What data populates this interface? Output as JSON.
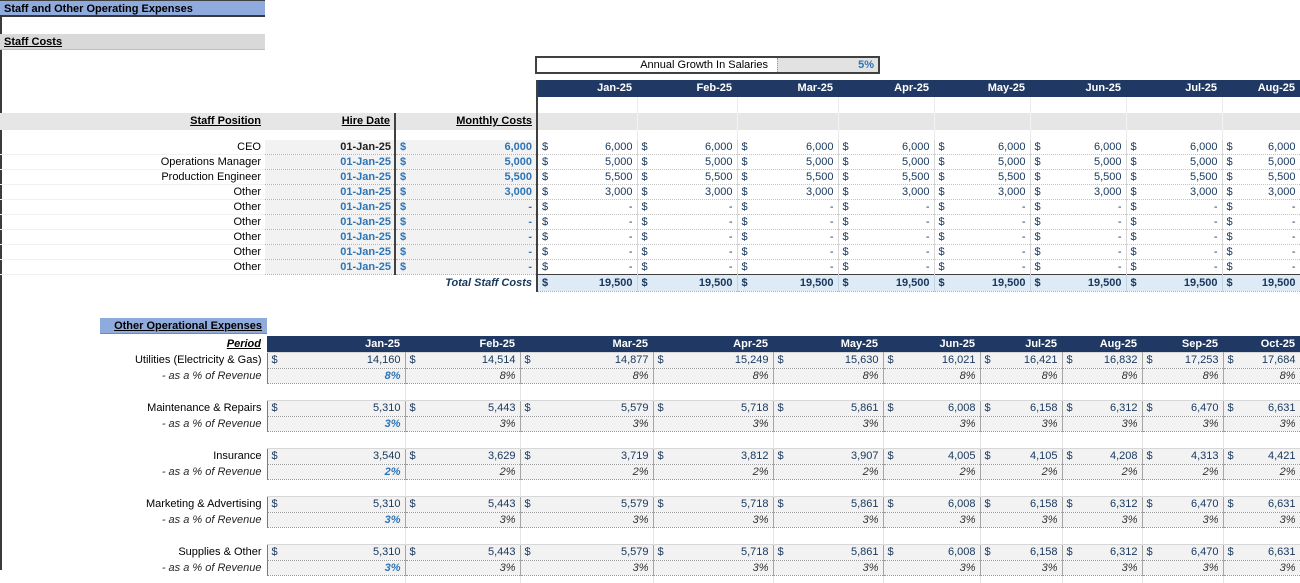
{
  "title": "Staff and Other Operating Expenses",
  "colors": {
    "header_blue": "#8FAADC",
    "navy": "#1F3864",
    "input_blue": "#2E75B6",
    "value_navy": "#17375D",
    "input_cell_gray": "#F2F2F2",
    "band_gray": "#D9D9D9",
    "total_row_blue": "#DEEAF6"
  },
  "staff_section": {
    "heading": "Staff Costs",
    "growth": {
      "label": "Annual Growth In Salaries",
      "value": "5%"
    },
    "currency": "$",
    "columns": {
      "position": "Staff Position",
      "hire_date": "Hire Date",
      "monthly_costs": "Monthly Costs"
    },
    "months": [
      "Jan-25",
      "Feb-25",
      "Mar-25",
      "Apr-25",
      "May-25",
      "Jun-25",
      "Jul-25",
      "Aug-25"
    ],
    "rows": [
      {
        "position": "CEO",
        "hire_date": "01-Jan-25",
        "hire_is_blue": false,
        "monthly_cost": "6,000"
      },
      {
        "position": "Operations Manager",
        "hire_date": "01-Jan-25",
        "hire_is_blue": true,
        "monthly_cost": "5,000"
      },
      {
        "position": "Production Engineer",
        "hire_date": "01-Jan-25",
        "hire_is_blue": true,
        "monthly_cost": "5,500"
      },
      {
        "position": "Other",
        "hire_date": "01-Jan-25",
        "hire_is_blue": true,
        "monthly_cost": "3,000"
      },
      {
        "position": "Other",
        "hire_date": "01-Jan-25",
        "hire_is_blue": true,
        "monthly_cost": "-"
      },
      {
        "position": "Other",
        "hire_date": "01-Jan-25",
        "hire_is_blue": true,
        "monthly_cost": "-"
      },
      {
        "position": "Other",
        "hire_date": "01-Jan-25",
        "hire_is_blue": true,
        "monthly_cost": "-"
      },
      {
        "position": "Other",
        "hire_date": "01-Jan-25",
        "hire_is_blue": true,
        "monthly_cost": "-"
      },
      {
        "position": "Other",
        "hire_date": "01-Jan-25",
        "hire_is_blue": true,
        "monthly_cost": "-"
      }
    ],
    "total": {
      "label": "Total Staff Costs",
      "value": "19,500"
    }
  },
  "opex_section": {
    "heading": "Other Operational Expenses",
    "period_label": "Period",
    "pct_row_label": "- as a % of Revenue",
    "currency": "$",
    "months": [
      "Jan-25",
      "Feb-25",
      "Mar-25",
      "Apr-25",
      "May-25",
      "Jun-25",
      "Jul-25",
      "Aug-25",
      "Sep-25",
      "Oct-25"
    ],
    "items": [
      {
        "name": "Utilities (Electricity & Gas)",
        "values": [
          "14,160",
          "14,514",
          "14,877",
          "15,249",
          "15,630",
          "16,021",
          "16,421",
          "16,832",
          "17,253",
          "17,684"
        ],
        "pct": "8%"
      },
      {
        "name": "Maintenance & Repairs",
        "values": [
          "5,310",
          "5,443",
          "5,579",
          "5,718",
          "5,861",
          "6,008",
          "6,158",
          "6,312",
          "6,470",
          "6,631"
        ],
        "pct": "3%"
      },
      {
        "name": "Insurance",
        "values": [
          "3,540",
          "3,629",
          "3,719",
          "3,812",
          "3,907",
          "4,005",
          "4,105",
          "4,208",
          "4,313",
          "4,421"
        ],
        "pct": "2%"
      },
      {
        "name": "Marketing & Advertising",
        "values": [
          "5,310",
          "5,443",
          "5,579",
          "5,718",
          "5,861",
          "6,008",
          "6,158",
          "6,312",
          "6,470",
          "6,631"
        ],
        "pct": "3%"
      },
      {
        "name": "Supplies & Other",
        "values": [
          "5,310",
          "5,443",
          "5,579",
          "5,718",
          "5,861",
          "6,008",
          "6,158",
          "6,312",
          "6,470",
          "6,631"
        ],
        "pct": "3%"
      }
    ]
  }
}
